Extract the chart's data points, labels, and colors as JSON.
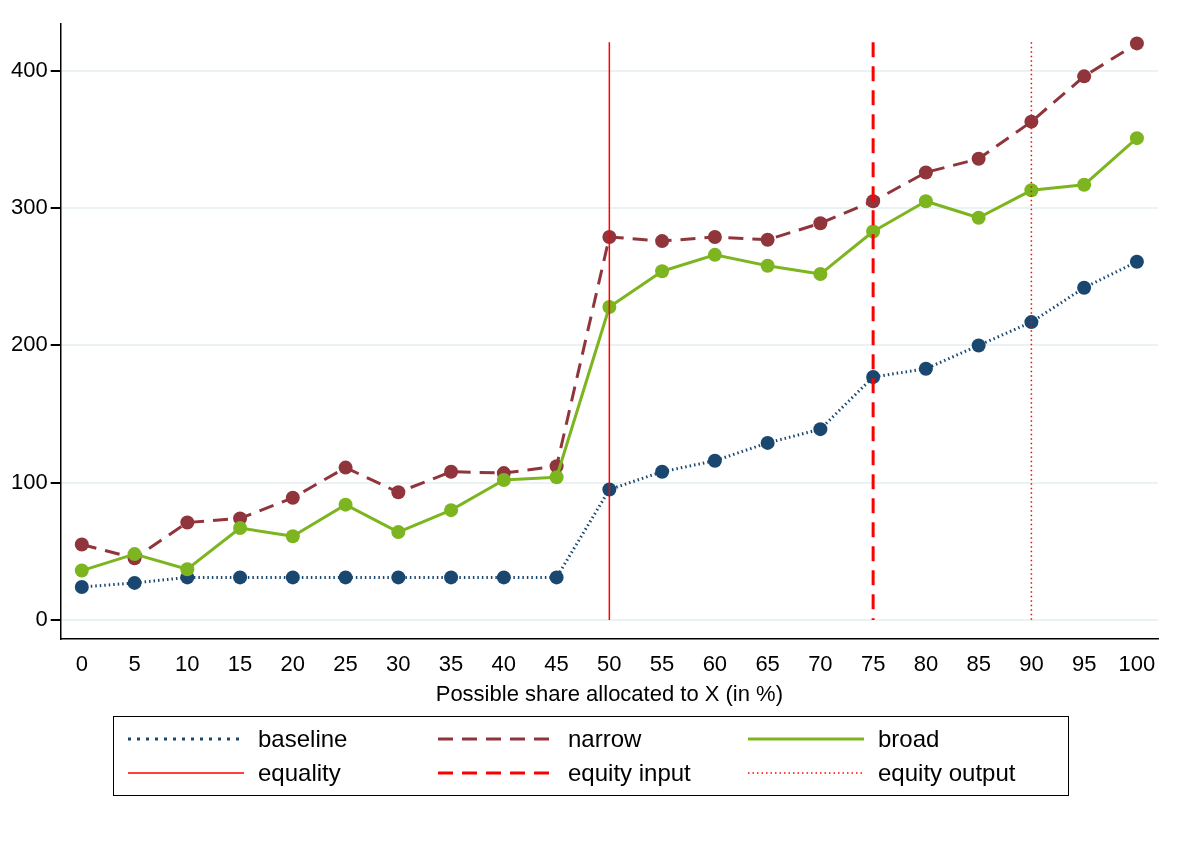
{
  "chart_data": {
    "type": "line",
    "xlabel": "Possible share allocated to X (in %)",
    "x": [
      0,
      5,
      10,
      15,
      20,
      25,
      30,
      35,
      40,
      45,
      50,
      55,
      60,
      65,
      70,
      75,
      80,
      85,
      90,
      95,
      100
    ],
    "xlim": [
      -2,
      102
    ],
    "xticks": [
      0,
      5,
      10,
      15,
      20,
      25,
      30,
      35,
      40,
      45,
      50,
      55,
      60,
      65,
      70,
      75,
      80,
      85,
      90,
      95,
      100
    ],
    "ylim": [
      -14,
      434
    ],
    "yticks": [
      0,
      100,
      200,
      300,
      400
    ],
    "grid": "y",
    "legend": "bottom",
    "marker": "circle",
    "series": [
      {
        "name": "baseline",
        "color": "#1a476f",
        "line_style": "dotted",
        "values": [
          24,
          27,
          31,
          31,
          31,
          31,
          31,
          31,
          31,
          31,
          95,
          108,
          116,
          129,
          139,
          177,
          183,
          200,
          217,
          242,
          261
        ]
      },
      {
        "name": "narrow",
        "color": "#90353b",
        "line_style": "dashed",
        "values": [
          55,
          45,
          71,
          74,
          89,
          111,
          93,
          108,
          107,
          112,
          279,
          276,
          279,
          277,
          289,
          305,
          326,
          336,
          363,
          396,
          420
        ]
      },
      {
        "name": "broad",
        "color": "#7cb51f",
        "line_style": "solid",
        "values": [
          36,
          48,
          37,
          67,
          61,
          84,
          64,
          80,
          102,
          104,
          228,
          254,
          266,
          258,
          252,
          283,
          305,
          293,
          313,
          317,
          351
        ]
      }
    ],
    "ref_lines": [
      {
        "axis": "x",
        "value": 50,
        "label": "equality",
        "color": "#ff0000",
        "line_style": "solid"
      },
      {
        "axis": "x",
        "value": 75,
        "label": "equity input",
        "color": "#ff0000",
        "line_style": "dashed"
      },
      {
        "axis": "x",
        "value": 90,
        "label": "equity output",
        "color": "#ff0000",
        "line_style": "dotted"
      }
    ]
  }
}
